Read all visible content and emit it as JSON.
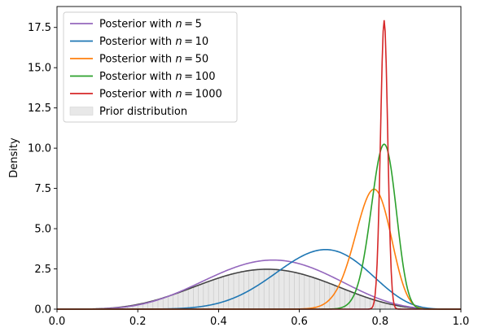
{
  "chart_data": {
    "type": "line",
    "title": "",
    "xlabel": "",
    "ylabel": "Density",
    "xlim": [
      0.0,
      1.0
    ],
    "ylim": [
      0.0,
      18.8
    ],
    "xticks": [
      "0.0",
      "0.2",
      "0.4",
      "0.6",
      "0.8",
      "1.0"
    ],
    "yticks": [
      "0.0",
      "2.5",
      "5.0",
      "7.5",
      "10.0",
      "12.5",
      "15.0",
      "17.5"
    ],
    "grid": false,
    "legend_position": "top-left",
    "series": [
      {
        "name": "Posterior with n = 5",
        "color": "#9467bd",
        "peak_x": 0.535,
        "peak_y": 3.05
      },
      {
        "name": "Posterior with n = 10",
        "color": "#1f77b4",
        "peak_x": 0.665,
        "peak_y": 3.7
      },
      {
        "name": "Posterior with n = 50",
        "color": "#ff7f0e",
        "peak_x": 0.785,
        "peak_y": 7.45
      },
      {
        "name": "Posterior with n = 100",
        "color": "#2ca02c",
        "peak_x": 0.81,
        "peak_y": 10.25
      },
      {
        "name": "Posterior with n = 1000",
        "color": "#d62728",
        "peak_x": 0.81,
        "peak_y": 17.95
      }
    ],
    "prior": {
      "name": "Prior distribution",
      "fill_color": "#e8e8e8",
      "line_color": "#444444",
      "peak_x": 0.52,
      "peak_y": 2.48
    }
  }
}
